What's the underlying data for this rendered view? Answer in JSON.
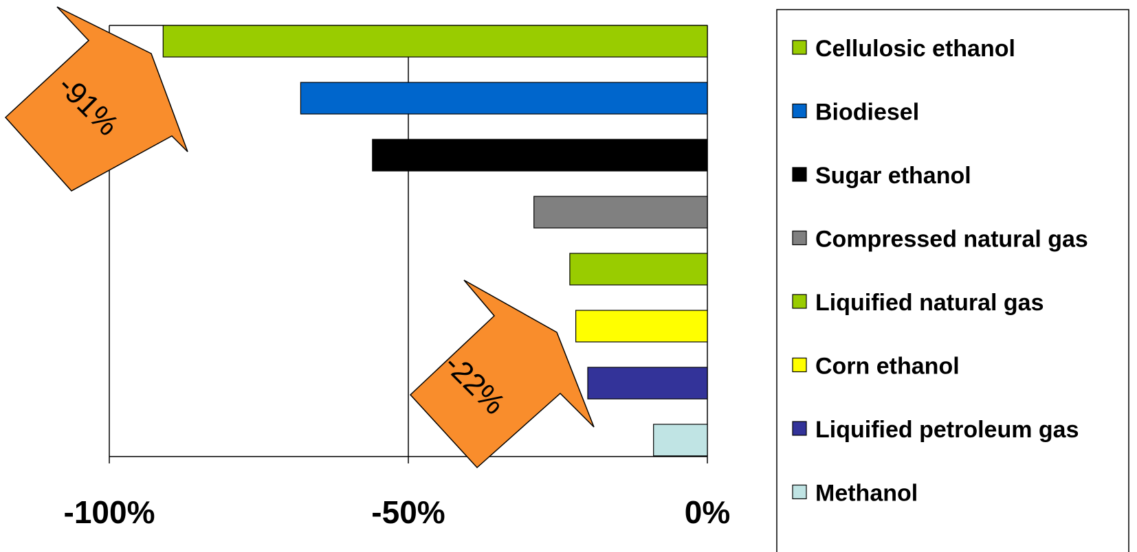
{
  "chart_data": {
    "type": "bar",
    "orientation": "horizontal",
    "title": "",
    "xlabel": "",
    "ylabel": "",
    "xlim": [
      -100,
      0
    ],
    "x_ticks": [
      -100,
      -50,
      0
    ],
    "x_tick_labels": [
      "-100%",
      "-50%",
      "0%"
    ],
    "grid": "vertical gridlines at -50% and -100%",
    "legend_position": "right",
    "categories": [
      "Cellulosic ethanol",
      "Biodiesel",
      "Sugar ethanol",
      "Compressed natural gas",
      "Liquified natural gas",
      "Corn ethanol",
      "Liquified petroleum gas",
      "Methanol"
    ],
    "values": [
      -91,
      -68,
      -56,
      -29,
      -23,
      -22,
      -20,
      -9
    ],
    "colors": [
      "#99CC00",
      "#0066CC",
      "#000000",
      "#808080",
      "#99CC00",
      "#FFFF00",
      "#333399",
      "#C0E4E4"
    ],
    "annotations": [
      {
        "text": "-91%",
        "points_to": "Cellulosic ethanol",
        "color": "#F98D2C"
      },
      {
        "text": "-22%",
        "points_to": "Corn ethanol",
        "color": "#F98D2C"
      }
    ]
  }
}
